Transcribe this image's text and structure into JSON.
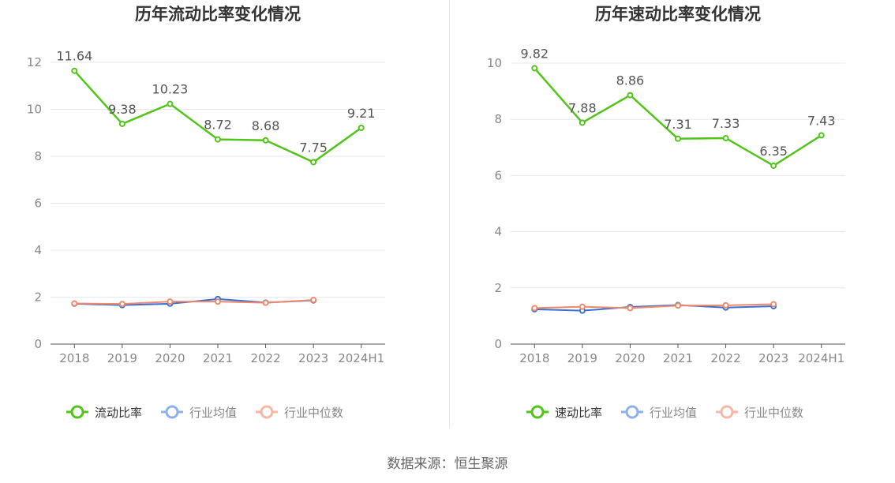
{
  "colors": {
    "primary": "#52c41a",
    "avg": "#3b6fd1",
    "median": "#ee8a6c",
    "avg_legend": "#8fb0ec",
    "median_legend": "#f6b8a6",
    "axis": "#555555",
    "grid": "#e6e9f0",
    "label": "#555555",
    "title": "#333333"
  },
  "source_label": "数据来源：恒生聚源",
  "chart_data": [
    {
      "type": "line",
      "title": "历年流动比率变化情况",
      "categories": [
        "2018",
        "2019",
        "2020",
        "2021",
        "2022",
        "2023",
        "2024H1"
      ],
      "ylim": [
        0,
        12
      ],
      "yticks": [
        0,
        2,
        4,
        6,
        8,
        10,
        12
      ],
      "series": [
        {
          "name": "流动比率",
          "role": "primary",
          "values": [
            11.64,
            9.38,
            10.23,
            8.72,
            8.68,
            7.75,
            9.21
          ],
          "labels": [
            "11.64",
            "9.38",
            "10.23",
            "8.72",
            "8.68",
            "7.75",
            "9.21"
          ]
        },
        {
          "name": "行业均值",
          "role": "avg",
          "values": [
            1.72,
            1.66,
            1.72,
            1.92,
            1.77,
            1.86,
            null
          ]
        },
        {
          "name": "行业中位数",
          "role": "median",
          "values": [
            1.73,
            1.71,
            1.81,
            1.81,
            1.76,
            1.88,
            null
          ]
        }
      ]
    },
    {
      "type": "line",
      "title": "历年速动比率变化情况",
      "categories": [
        "2018",
        "2019",
        "2020",
        "2021",
        "2022",
        "2023",
        "2024H1"
      ],
      "ylim": [
        0,
        10
      ],
      "yticks": [
        0,
        2,
        4,
        6,
        8,
        10
      ],
      "series": [
        {
          "name": "速动比率",
          "role": "primary",
          "values": [
            9.82,
            7.88,
            8.86,
            7.31,
            7.33,
            6.35,
            7.43
          ],
          "labels": [
            "9.82",
            "7.88",
            "8.86",
            "7.31",
            "7.33",
            "6.35",
            "7.43"
          ]
        },
        {
          "name": "行业均值",
          "role": "avg",
          "values": [
            1.24,
            1.19,
            1.32,
            1.39,
            1.3,
            1.35,
            null
          ]
        },
        {
          "name": "行业中位数",
          "role": "median",
          "values": [
            1.28,
            1.33,
            1.28,
            1.37,
            1.38,
            1.42,
            null
          ]
        }
      ]
    }
  ]
}
